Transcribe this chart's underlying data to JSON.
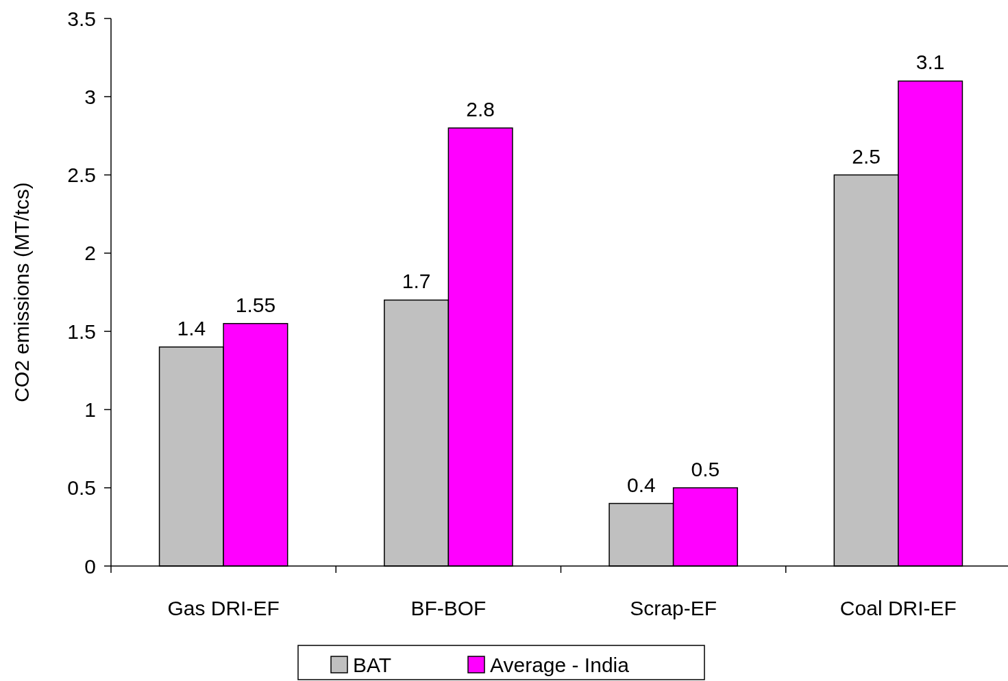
{
  "chart_data": {
    "type": "bar",
    "ylabel": "CO2 emissions (MT/tcs)",
    "categories": [
      "Gas DRI-EF",
      "BF-BOF",
      "Scrap-EF",
      "Coal DRI-EF"
    ],
    "series": [
      {
        "name": "BAT",
        "color": "#c0c0c0",
        "values": [
          1.4,
          1.7,
          0.4,
          2.5
        ]
      },
      {
        "name": "Average - India",
        "color": "#ff00ff",
        "values": [
          1.55,
          2.8,
          0.5,
          3.1
        ]
      }
    ],
    "ylim": [
      0,
      3.5
    ],
    "yticks": [
      0,
      0.5,
      1,
      1.5,
      2,
      2.5,
      3,
      3.5
    ],
    "data_labels": true,
    "legend": "bottom",
    "grid": false
  }
}
